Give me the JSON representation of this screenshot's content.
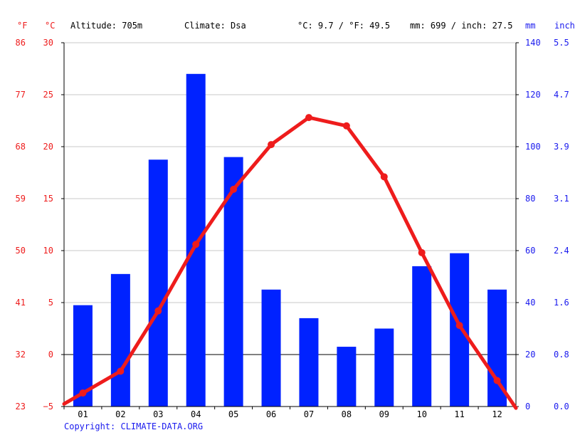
{
  "header": {
    "unit_f": "°F",
    "unit_c": "°C",
    "altitude": "Altitude: 705m",
    "climate": "Climate: Dsa",
    "temp_avg": "°C: 9.7 / °F: 49.5",
    "precip_total": "mm: 699 / inch: 27.5",
    "unit_mm": "mm",
    "unit_inch": "inch"
  },
  "copyright": "Copyright: CLIMATE-DATA.ORG",
  "colors": {
    "temperature": "#ee1c1c",
    "precipitation": "#0022ff",
    "grid": "#c8c8c8",
    "text_blue": "#1a1aee"
  },
  "chart_data": {
    "type": "bar",
    "categories": [
      "01",
      "02",
      "03",
      "04",
      "05",
      "06",
      "07",
      "08",
      "09",
      "10",
      "11",
      "12"
    ],
    "series": [
      {
        "type": "bar",
        "axis": "right",
        "unit": "mm",
        "values": [
          39,
          51,
          95,
          128,
          96,
          45,
          34,
          23,
          30,
          54,
          59,
          45
        ]
      },
      {
        "type": "line",
        "axis": "left",
        "unit": "°C",
        "values": [
          -3.7,
          -1.6,
          4.2,
          10.6,
          15.9,
          20.2,
          22.8,
          22.0,
          17.1,
          9.8,
          2.8,
          -2.5
        ]
      }
    ],
    "y_left_c": {
      "min": -5,
      "max": 30,
      "ticks": [
        "30",
        "25",
        "20",
        "15",
        "10",
        "5",
        "0",
        "−5"
      ]
    },
    "y_left_f": {
      "ticks": [
        "86",
        "77",
        "68",
        "59",
        "50",
        "41",
        "32",
        "23"
      ]
    },
    "y_right_mm": {
      "min": 0,
      "max": 140,
      "ticks": [
        "140",
        "120",
        "100",
        "80",
        "60",
        "40",
        "20",
        "0"
      ]
    },
    "y_right_inch": {
      "ticks": [
        "5.5",
        "4.7",
        "3.9",
        "3.1",
        "2.4",
        "1.6",
        "0.8",
        "0.0"
      ]
    },
    "grid": true
  }
}
